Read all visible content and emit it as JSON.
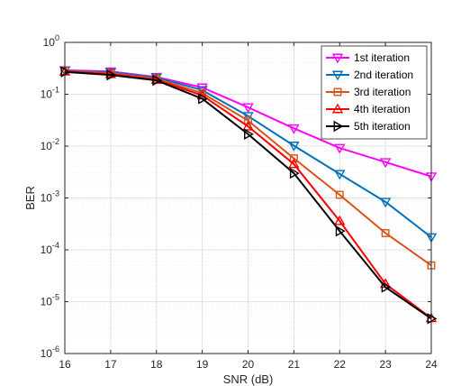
{
  "chart_data": {
    "type": "line",
    "title": "",
    "xlabel": "SNR (dB)",
    "ylabel": "BER",
    "xlim": [
      16,
      24
    ],
    "ylim": [
      1e-06,
      1
    ],
    "yscale": "log",
    "grid": true,
    "legend_position": "top-right",
    "x": [
      16,
      17,
      18,
      19,
      20,
      21,
      22,
      23,
      24
    ],
    "x_ticks": [
      "16",
      "17",
      "18",
      "19",
      "20",
      "21",
      "22",
      "23",
      "24"
    ],
    "y_ticks": [
      {
        "base": "10",
        "exp": "0",
        "value": 1
      },
      {
        "base": "10",
        "exp": "-1",
        "value": 0.1
      },
      {
        "base": "10",
        "exp": "-2",
        "value": 0.01
      },
      {
        "base": "10",
        "exp": "-3",
        "value": 0.001
      },
      {
        "base": "10",
        "exp": "-4",
        "value": 0.0001
      },
      {
        "base": "10",
        "exp": "-5",
        "value": 1e-05
      },
      {
        "base": "10",
        "exp": "-6",
        "value": 1e-06
      }
    ],
    "series": [
      {
        "name": "1st iteration",
        "color": "#ff00ff",
        "marker": "triangle-down",
        "values": [
          0.29,
          0.275,
          0.215,
          0.135,
          0.056,
          0.022,
          0.0092,
          0.0049,
          0.0026
        ]
      },
      {
        "name": "2nd iteration",
        "color": "#0072bd",
        "marker": "triangle-down",
        "values": [
          0.285,
          0.265,
          0.21,
          0.12,
          0.038,
          0.0102,
          0.0029,
          0.00084,
          0.000175
        ]
      },
      {
        "name": "3rd iteration",
        "color": "#d95319",
        "marker": "square",
        "values": [
          0.28,
          0.255,
          0.2,
          0.105,
          0.031,
          0.0058,
          0.00115,
          0.00021,
          5e-05
        ]
      },
      {
        "name": "4th iteration",
        "color": "#ff0000",
        "marker": "triangle-up",
        "values": [
          0.275,
          0.245,
          0.19,
          0.095,
          0.024,
          0.0045,
          0.00036,
          2.2e-05,
          4.8e-06
        ]
      },
      {
        "name": "5th iteration",
        "color": "#000000",
        "marker": "triangle-right",
        "values": [
          0.27,
          0.235,
          0.185,
          0.082,
          0.017,
          0.003,
          0.00023,
          1.9e-05,
          4.7e-06
        ]
      }
    ]
  }
}
